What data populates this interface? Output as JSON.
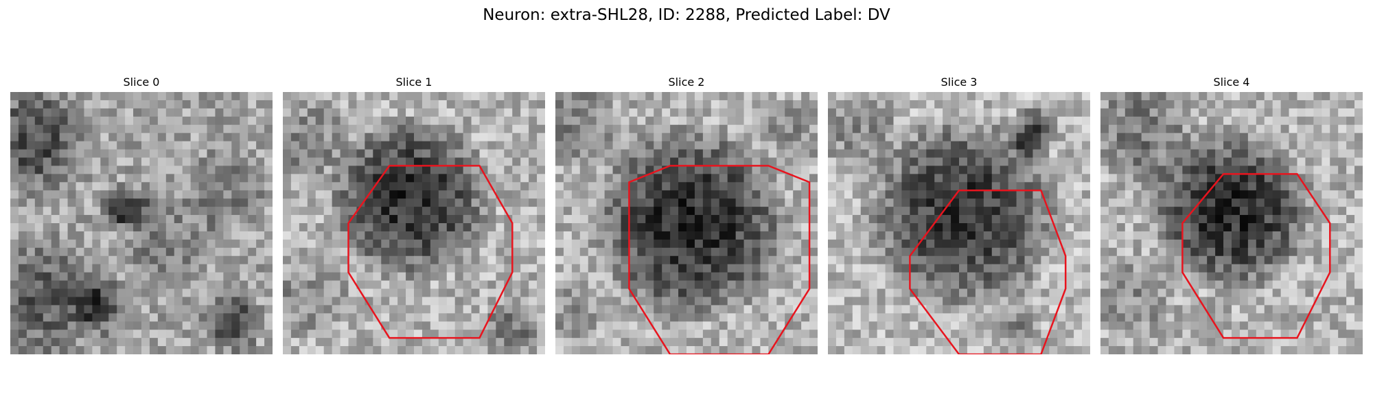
{
  "figure": {
    "title": "Neuron: extra-SHL28, ID: 2288, Predicted Label: DV"
  },
  "colors": {
    "contour": "#e8141e",
    "background": "#ffffff"
  },
  "panels": [
    {
      "title": "Slice 0",
      "has_contour": false
    },
    {
      "title": "Slice 1",
      "has_contour": true
    },
    {
      "title": "Slice 2",
      "has_contour": true
    },
    {
      "title": "Slice 3",
      "has_contour": true
    },
    {
      "title": "Slice 4",
      "has_contour": true
    }
  ]
}
